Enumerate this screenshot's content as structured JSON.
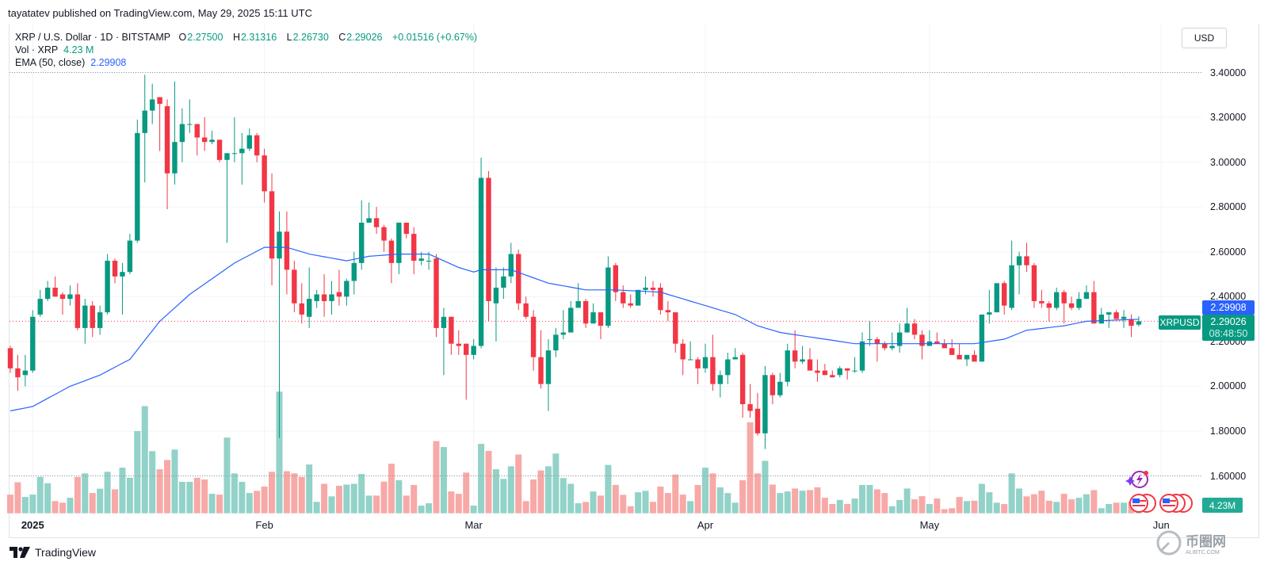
{
  "publisher": "tayatatev published on TradingView.com, May 29, 2025 15:11 UTC",
  "legend": {
    "symbol": "XRP / U.S. Dollar · 1D · BITSTAMP",
    "open_label": "O",
    "open": "2.27500",
    "high_label": "H",
    "high": "2.31316",
    "low_label": "L",
    "low": "2.26730",
    "close_label": "C",
    "close": "2.29026",
    "change": "+0.01516 (+0.67%)",
    "volume_label": "Vol · XRP",
    "volume": "4.23 M",
    "ema_label": "EMA (50, close)",
    "ema": "2.29908"
  },
  "currency_button": "USD",
  "price_scale": {
    "ema_value": "2.29908",
    "last_price": "2.29026",
    "countdown": "08:48:50",
    "symbol_tag": "XRPUSD",
    "volume_value": "4.23M"
  },
  "branding": {
    "logo_text": "TradingView",
    "watermark": "币圈网",
    "watermark_sub": "ALIBTC.COM"
  },
  "colors": {
    "up": "#089981",
    "down": "#f23645",
    "vol_up": "#92d2c8",
    "vol_down": "#f7a9a7",
    "ema": "#2962ff",
    "grid": "#f0f3fa"
  },
  "chart_data": {
    "type": "candlestick",
    "title": "XRP / U.S. Dollar · 1D · BITSTAMP",
    "ylabel": "USD",
    "ylim": [
      1.55,
      3.45
    ],
    "y_ticks": [
      "3.40000",
      "3.20000",
      "3.00000",
      "2.80000",
      "2.60000",
      "2.40000",
      "2.20000",
      "2.00000",
      "1.80000",
      "1.60000"
    ],
    "x_ticks": [
      {
        "label": "2025",
        "day": 3,
        "bold": true
      },
      {
        "label": "Feb",
        "day": 34
      },
      {
        "label": "Mar",
        "day": 62
      },
      {
        "label": "Apr",
        "day": 93
      },
      {
        "label": "May",
        "day": 123
      },
      {
        "label": "Jun",
        "day": 154
      }
    ],
    "first_day": "2024-12-29",
    "last_day": "2025-05-29",
    "ohlc_fields": [
      "open",
      "high",
      "low",
      "close"
    ],
    "candles": [
      [
        2.17,
        2.18,
        2.06,
        2.08
      ],
      [
        2.08,
        2.14,
        1.98,
        2.04
      ],
      [
        2.05,
        2.14,
        2.0,
        2.07
      ],
      [
        2.07,
        2.34,
        2.06,
        2.31
      ],
      [
        2.32,
        2.43,
        2.31,
        2.39
      ],
      [
        2.39,
        2.47,
        2.38,
        2.44
      ],
      [
        2.44,
        2.49,
        2.4,
        2.4
      ],
      [
        2.41,
        2.42,
        2.32,
        2.39
      ],
      [
        2.39,
        2.45,
        2.36,
        2.41
      ],
      [
        2.41,
        2.46,
        2.25,
        2.26
      ],
      [
        2.26,
        2.39,
        2.19,
        2.36
      ],
      [
        2.36,
        2.38,
        2.22,
        2.26
      ],
      [
        2.26,
        2.36,
        2.23,
        2.33
      ],
      [
        2.33,
        2.59,
        2.32,
        2.56
      ],
      [
        2.56,
        2.57,
        2.46,
        2.49
      ],
      [
        2.49,
        2.55,
        2.32,
        2.51
      ],
      [
        2.51,
        2.68,
        2.5,
        2.65
      ],
      [
        2.65,
        3.19,
        2.64,
        3.13
      ],
      [
        3.13,
        3.39,
        2.91,
        3.23
      ],
      [
        3.23,
        3.35,
        3.17,
        3.28
      ],
      [
        3.29,
        3.29,
        3.05,
        3.26
      ],
      [
        3.25,
        3.28,
        2.79,
        2.95
      ],
      [
        2.95,
        3.36,
        2.9,
        3.09
      ],
      [
        3.09,
        3.24,
        3.0,
        3.17
      ],
      [
        3.17,
        3.28,
        3.13,
        3.17
      ],
      [
        3.17,
        3.17,
        3.03,
        3.11
      ],
      [
        3.11,
        3.2,
        3.05,
        3.09
      ],
      [
        3.09,
        3.14,
        3.08,
        3.1
      ],
      [
        3.1,
        3.1,
        3.0,
        3.01
      ],
      [
        3.01,
        3.04,
        2.64,
        3.04
      ],
      [
        3.04,
        3.2,
        3.0,
        3.04
      ],
      [
        3.04,
        3.13,
        2.9,
        3.06
      ],
      [
        3.06,
        3.15,
        3.05,
        3.12
      ],
      [
        3.12,
        3.13,
        3.0,
        3.03
      ],
      [
        3.03,
        3.06,
        2.82,
        2.87
      ],
      [
        2.87,
        2.95,
        2.45,
        2.57
      ],
      [
        2.57,
        2.78,
        1.77,
        2.69
      ],
      [
        2.69,
        2.78,
        2.41,
        2.52
      ],
      [
        2.52,
        2.56,
        2.33,
        2.37
      ],
      [
        2.37,
        2.46,
        2.28,
        2.32
      ],
      [
        2.31,
        2.53,
        2.26,
        2.39
      ],
      [
        2.38,
        2.43,
        2.35,
        2.41
      ],
      [
        2.41,
        2.5,
        2.31,
        2.38
      ],
      [
        2.38,
        2.47,
        2.32,
        2.41
      ],
      [
        2.42,
        2.52,
        2.36,
        2.4
      ],
      [
        2.4,
        2.48,
        2.36,
        2.47
      ],
      [
        2.47,
        2.6,
        2.41,
        2.55
      ],
      [
        2.55,
        2.83,
        2.52,
        2.73
      ],
      [
        2.73,
        2.82,
        2.73,
        2.75
      ],
      [
        2.75,
        2.8,
        2.68,
        2.71
      ],
      [
        2.71,
        2.72,
        2.6,
        2.65
      ],
      [
        2.65,
        2.66,
        2.46,
        2.55
      ],
      [
        2.55,
        2.73,
        2.5,
        2.73
      ],
      [
        2.73,
        2.73,
        2.66,
        2.68
      ],
      [
        2.68,
        2.71,
        2.5,
        2.56
      ],
      [
        2.56,
        2.6,
        2.54,
        2.57
      ],
      [
        2.56,
        2.6,
        2.52,
        2.56
      ],
      [
        2.57,
        2.59,
        2.22,
        2.26
      ],
      [
        2.26,
        2.35,
        2.05,
        2.31
      ],
      [
        2.31,
        2.31,
        2.14,
        2.19
      ],
      [
        2.19,
        2.25,
        2.14,
        2.18
      ],
      [
        2.19,
        2.19,
        1.94,
        2.14
      ],
      [
        2.14,
        2.21,
        2.12,
        2.18
      ],
      [
        2.18,
        3.02,
        2.17,
        2.93
      ],
      [
        2.93,
        2.96,
        2.29,
        2.38
      ],
      [
        2.37,
        2.53,
        2.2,
        2.44
      ],
      [
        2.44,
        2.53,
        2.39,
        2.49
      ],
      [
        2.49,
        2.64,
        2.46,
        2.59
      ],
      [
        2.59,
        2.61,
        2.34,
        2.37
      ],
      [
        2.37,
        2.4,
        2.3,
        2.31
      ],
      [
        2.31,
        2.34,
        2.07,
        2.13
      ],
      [
        2.13,
        2.25,
        1.99,
        2.01
      ],
      [
        2.01,
        2.21,
        1.89,
        2.16
      ],
      [
        2.16,
        2.26,
        2.13,
        2.23
      ],
      [
        2.23,
        2.34,
        2.21,
        2.24
      ],
      [
        2.24,
        2.38,
        2.24,
        2.35
      ],
      [
        2.35,
        2.46,
        2.35,
        2.38
      ],
      [
        2.38,
        2.39,
        2.26,
        2.28
      ],
      [
        2.28,
        2.37,
        2.28,
        2.33
      ],
      [
        2.33,
        2.33,
        2.21,
        2.27
      ],
      [
        2.27,
        2.58,
        2.26,
        2.53
      ],
      [
        2.54,
        2.55,
        2.38,
        2.42
      ],
      [
        2.42,
        2.45,
        2.35,
        2.37
      ],
      [
        2.37,
        2.41,
        2.35,
        2.36
      ],
      [
        2.36,
        2.43,
        2.36,
        2.43
      ],
      [
        2.43,
        2.49,
        2.41,
        2.44
      ],
      [
        2.44,
        2.47,
        2.4,
        2.43
      ],
      [
        2.44,
        2.46,
        2.32,
        2.34
      ],
      [
        2.34,
        2.38,
        2.29,
        2.33
      ],
      [
        2.33,
        2.33,
        2.15,
        2.19
      ],
      [
        2.19,
        2.21,
        2.05,
        2.12
      ],
      [
        2.12,
        2.2,
        2.12,
        2.12
      ],
      [
        2.12,
        2.13,
        2.01,
        2.08
      ],
      [
        2.08,
        2.19,
        2.06,
        2.13
      ],
      [
        2.13,
        2.23,
        1.98,
        2.01
      ],
      [
        2.01,
        2.07,
        1.95,
        2.05
      ],
      [
        2.05,
        2.15,
        2.01,
        2.12
      ],
      [
        2.12,
        2.17,
        2.12,
        2.13
      ],
      [
        2.14,
        2.15,
        1.86,
        1.92
      ],
      [
        1.92,
        2.01,
        1.86,
        1.89
      ],
      [
        1.9,
        1.97,
        1.78,
        1.79
      ],
      [
        1.79,
        2.09,
        1.72,
        2.05
      ],
      [
        2.05,
        2.06,
        1.92,
        1.96
      ],
      [
        1.96,
        2.06,
        1.95,
        2.02
      ],
      [
        2.02,
        2.19,
        2.0,
        2.16
      ],
      [
        2.16,
        2.25,
        2.08,
        2.11
      ],
      [
        2.11,
        2.18,
        2.1,
        2.12
      ],
      [
        2.12,
        2.17,
        2.07,
        2.07
      ],
      [
        2.07,
        2.12,
        2.02,
        2.06
      ],
      [
        2.07,
        2.1,
        2.05,
        2.05
      ],
      [
        2.05,
        2.07,
        2.04,
        2.04
      ],
      [
        2.05,
        2.09,
        2.04,
        2.08
      ],
      [
        2.08,
        2.08,
        2.03,
        2.07
      ],
      [
        2.07,
        2.13,
        2.06,
        2.07
      ],
      [
        2.07,
        2.24,
        2.06,
        2.2
      ],
      [
        2.21,
        2.29,
        2.18,
        2.21
      ],
      [
        2.21,
        2.22,
        2.11,
        2.19
      ],
      [
        2.19,
        2.2,
        2.16,
        2.17
      ],
      [
        2.17,
        2.24,
        2.16,
        2.18
      ],
      [
        2.18,
        2.28,
        2.15,
        2.24
      ],
      [
        2.24,
        2.35,
        2.24,
        2.28
      ],
      [
        2.28,
        2.3,
        2.21,
        2.23
      ],
      [
        2.23,
        2.25,
        2.12,
        2.18
      ],
      [
        2.18,
        2.25,
        2.18,
        2.2
      ],
      [
        2.2,
        2.24,
        2.19,
        2.19
      ],
      [
        2.19,
        2.21,
        2.17,
        2.17
      ],
      [
        2.17,
        2.21,
        2.14,
        2.14
      ],
      [
        2.14,
        2.19,
        2.12,
        2.12
      ],
      [
        2.12,
        2.14,
        2.09,
        2.14
      ],
      [
        2.14,
        2.16,
        2.11,
        2.11
      ],
      [
        2.11,
        2.32,
        2.11,
        2.32
      ],
      [
        2.32,
        2.43,
        2.28,
        2.33
      ],
      [
        2.33,
        2.46,
        2.33,
        2.46
      ],
      [
        2.46,
        2.47,
        2.32,
        2.36
      ],
      [
        2.35,
        2.65,
        2.34,
        2.54
      ],
      [
        2.54,
        2.6,
        2.41,
        2.58
      ],
      [
        2.58,
        2.64,
        2.51,
        2.54
      ],
      [
        2.54,
        2.55,
        2.35,
        2.38
      ],
      [
        2.38,
        2.43,
        2.35,
        2.37
      ],
      [
        2.37,
        2.38,
        2.29,
        2.35
      ],
      [
        2.35,
        2.44,
        2.34,
        2.42
      ],
      [
        2.42,
        2.43,
        2.28,
        2.37
      ],
      [
        2.37,
        2.4,
        2.34,
        2.35
      ],
      [
        2.35,
        2.42,
        2.34,
        2.39
      ],
      [
        2.39,
        2.45,
        2.39,
        2.42
      ],
      [
        2.42,
        2.47,
        2.28,
        2.28
      ],
      [
        2.28,
        2.35,
        2.28,
        2.32
      ],
      [
        2.32,
        2.33,
        2.26,
        2.33
      ],
      [
        2.33,
        2.34,
        2.31,
        2.3
      ],
      [
        2.3,
        2.34,
        2.26,
        2.31
      ],
      [
        2.3,
        2.32,
        2.22,
        2.27
      ],
      [
        2.275,
        2.313,
        2.267,
        2.29
      ]
    ],
    "volume_unit": "M XRP",
    "volumes": [
      9.5,
      15.8,
      8.3,
      9.5,
      18.5,
      15.3,
      6.2,
      5.4,
      7.9,
      18.5,
      20.3,
      10.3,
      12.5,
      21.1,
      12.2,
      23.2,
      18.1,
      41.8,
      54.5,
      31.6,
      22.4,
      27.1,
      32.4,
      16.0,
      16.0,
      18.1,
      17.2,
      9.9,
      9.5,
      38.5,
      20.3,
      16.0,
      10.3,
      11.4,
      13.6,
      21.1,
      61.9,
      21.4,
      20.3,
      18.5,
      24.8,
      5.8,
      15.0,
      8.6,
      14.0,
      14.6,
      15.0,
      20.0,
      9.0,
      9.0,
      16.1,
      25.2,
      16.8,
      9.0,
      14.4,
      3.9,
      5.1,
      36.7,
      33.7,
      11.1,
      9.9,
      20.7,
      3.9,
      35.3,
      31.7,
      22.4,
      17.5,
      23.9,
      29.9,
      6.2,
      17.2,
      21.8,
      23.9,
      30.4,
      17.9,
      15.0,
      5.1,
      5.8,
      11.1,
      9.0,
      24.6,
      14.4,
      9.4,
      3.6,
      10.7,
      11.4,
      5.8,
      13.6,
      10.3,
      19.7,
      9.5,
      6.2,
      14.4,
      23.2,
      20.3,
      13.2,
      10.3,
      5.4,
      16.8,
      46.3,
      20.3,
      26.7,
      14.6,
      10.3,
      11.1,
      12.6,
      11.5,
      11.8,
      13.2,
      7.9,
      4.7,
      6.8,
      4.7,
      7.5,
      14.4,
      14.4,
      12.2,
      10.3,
      3.6,
      6.8,
      12.6,
      7.1,
      8.7,
      4.7,
      7.5,
      2.1,
      2.6,
      8.3,
      6.2,
      6.4,
      15.0,
      10.7,
      5.4,
      4.7,
      20.3,
      12.6,
      8.6,
      9.7,
      11.5,
      6.4,
      5.8,
      9.9,
      7.1,
      7.9,
      9.7,
      11.8,
      2.6,
      4.7,
      5.4,
      5.4,
      6.0,
      4.23
    ],
    "ema50_samples": [
      [
        0,
        1.89
      ],
      [
        3,
        1.91
      ],
      [
        8,
        2.0
      ],
      [
        12,
        2.05
      ],
      [
        16,
        2.12
      ],
      [
        20,
        2.29
      ],
      [
        24,
        2.41
      ],
      [
        27,
        2.48
      ],
      [
        30,
        2.55
      ],
      [
        34,
        2.62
      ],
      [
        37,
        2.62
      ],
      [
        40,
        2.59
      ],
      [
        45,
        2.56
      ],
      [
        48,
        2.58
      ],
      [
        52,
        2.59
      ],
      [
        56,
        2.59
      ],
      [
        60,
        2.53
      ],
      [
        62,
        2.51
      ],
      [
        63,
        2.52
      ],
      [
        67,
        2.52
      ],
      [
        72,
        2.46
      ],
      [
        77,
        2.43
      ],
      [
        81,
        2.43
      ],
      [
        87,
        2.42
      ],
      [
        89,
        2.4
      ],
      [
        92,
        2.37
      ],
      [
        95,
        2.34
      ],
      [
        97,
        2.32
      ],
      [
        100,
        2.27
      ],
      [
        103,
        2.24
      ],
      [
        109,
        2.21
      ],
      [
        113,
        2.19
      ],
      [
        116,
        2.19
      ],
      [
        120,
        2.19
      ],
      [
        129,
        2.19
      ],
      [
        133,
        2.21
      ],
      [
        136,
        2.25
      ],
      [
        141,
        2.27
      ],
      [
        144,
        2.29
      ],
      [
        151,
        2.29908
      ]
    ],
    "last_price": 2.29026,
    "reference_lines": [
      3.4,
      1.6
    ],
    "grid": true
  }
}
